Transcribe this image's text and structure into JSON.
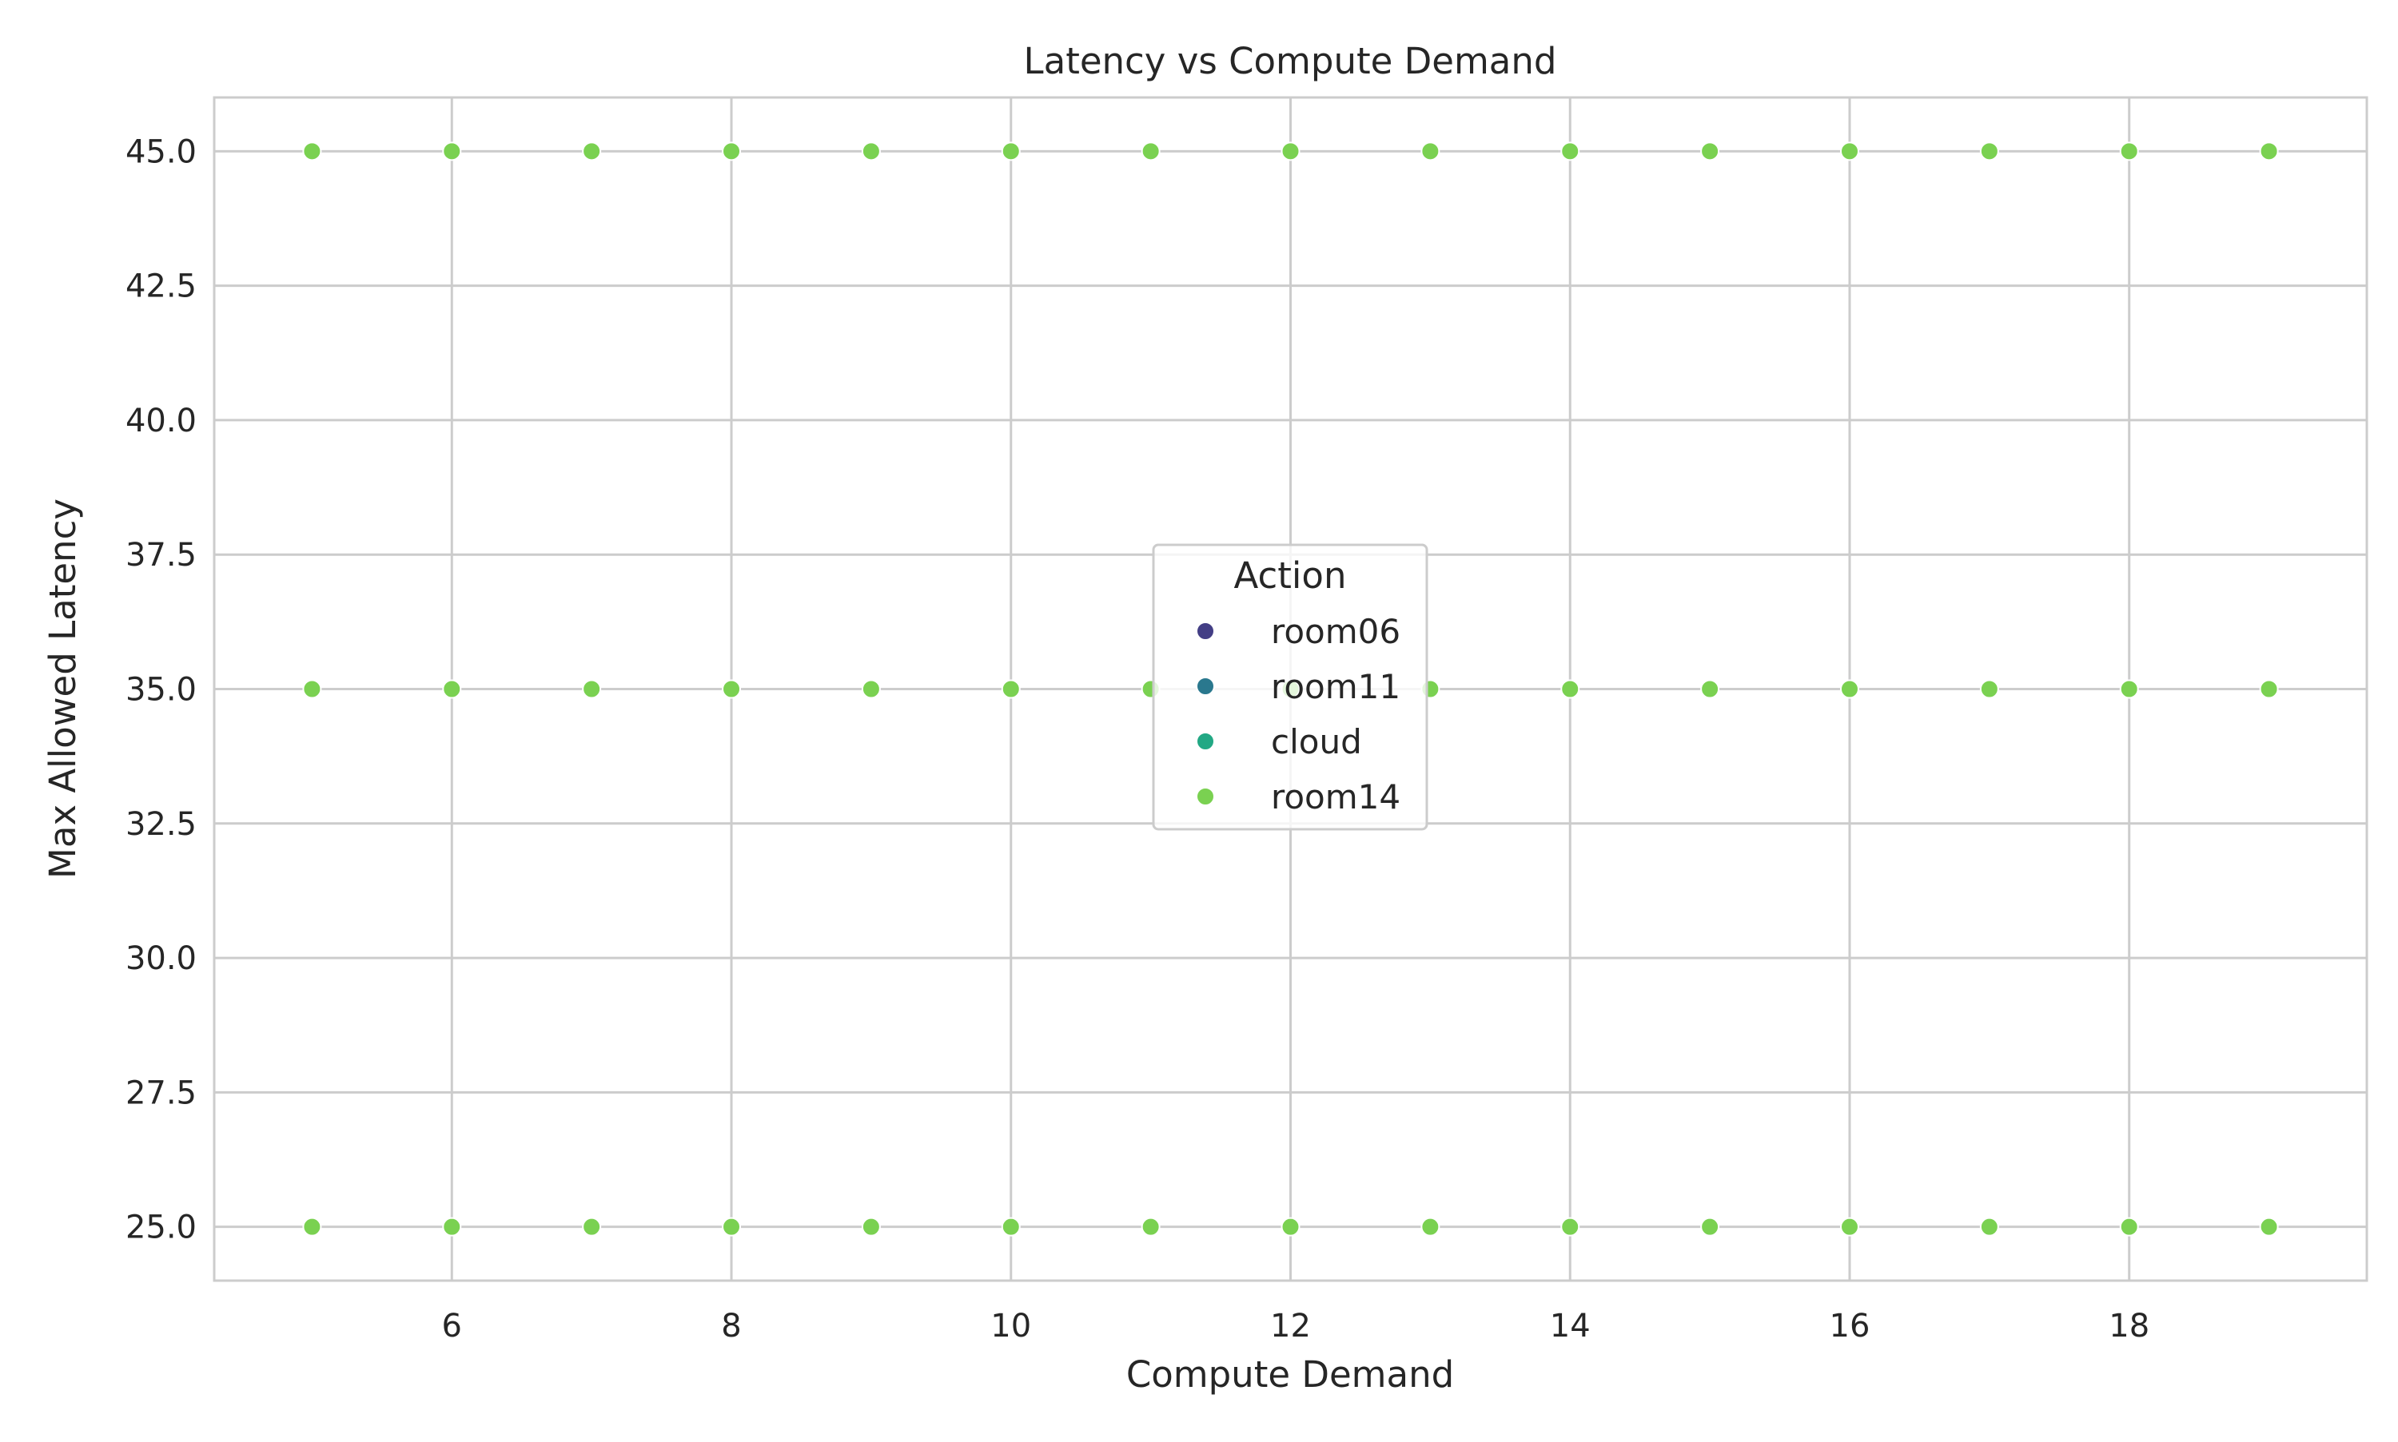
{
  "chart_data": {
    "type": "scatter",
    "title": "Latency vs Compute Demand",
    "xlabel": "Compute Demand",
    "ylabel": "Max Allowed Latency",
    "xlim": [
      4.3,
      19.7
    ],
    "ylim": [
      24.0,
      46.0
    ],
    "x_ticks": [
      6,
      8,
      10,
      12,
      14,
      16,
      18
    ],
    "y_ticks": [
      25.0,
      27.5,
      30.0,
      32.5,
      35.0,
      37.5,
      40.0,
      42.5,
      45.0
    ],
    "x_tick_labels": [
      "6",
      "8",
      "10",
      "12",
      "14",
      "16",
      "18"
    ],
    "y_tick_labels": [
      "25.0",
      "27.5",
      "30.0",
      "32.5",
      "35.0",
      "37.5",
      "40.0",
      "42.5",
      "45.0"
    ],
    "grid": true,
    "legend": {
      "title": "Action",
      "placement": "center",
      "entries": [
        {
          "name": "room06",
          "color": "#433e85"
        },
        {
          "name": "room11",
          "color": "#2a788e"
        },
        {
          "name": "cloud",
          "color": "#22a884"
        },
        {
          "name": "room14",
          "color": "#7ad151"
        }
      ]
    },
    "series": [
      {
        "name": "room14",
        "color": "#7ad151",
        "points": [
          [
            5,
            45
          ],
          [
            6,
            45
          ],
          [
            7,
            45
          ],
          [
            8,
            45
          ],
          [
            9,
            45
          ],
          [
            10,
            45
          ],
          [
            11,
            45
          ],
          [
            12,
            45
          ],
          [
            13,
            45
          ],
          [
            14,
            45
          ],
          [
            15,
            45
          ],
          [
            16,
            45
          ],
          [
            17,
            45
          ],
          [
            18,
            45
          ],
          [
            19,
            45
          ],
          [
            5,
            35
          ],
          [
            6,
            35
          ],
          [
            7,
            35
          ],
          [
            8,
            35
          ],
          [
            9,
            35
          ],
          [
            10,
            35
          ],
          [
            11,
            35
          ],
          [
            12,
            35
          ],
          [
            13,
            35
          ],
          [
            14,
            35
          ],
          [
            15,
            35
          ],
          [
            16,
            35
          ],
          [
            17,
            35
          ],
          [
            18,
            35
          ],
          [
            19,
            35
          ],
          [
            5,
            25
          ],
          [
            6,
            25
          ],
          [
            7,
            25
          ],
          [
            8,
            25
          ],
          [
            9,
            25
          ],
          [
            10,
            25
          ],
          [
            11,
            25
          ],
          [
            12,
            25
          ],
          [
            13,
            25
          ],
          [
            14,
            25
          ],
          [
            15,
            25
          ],
          [
            16,
            25
          ],
          [
            17,
            25
          ],
          [
            18,
            25
          ],
          [
            19,
            25
          ]
        ]
      }
    ]
  }
}
